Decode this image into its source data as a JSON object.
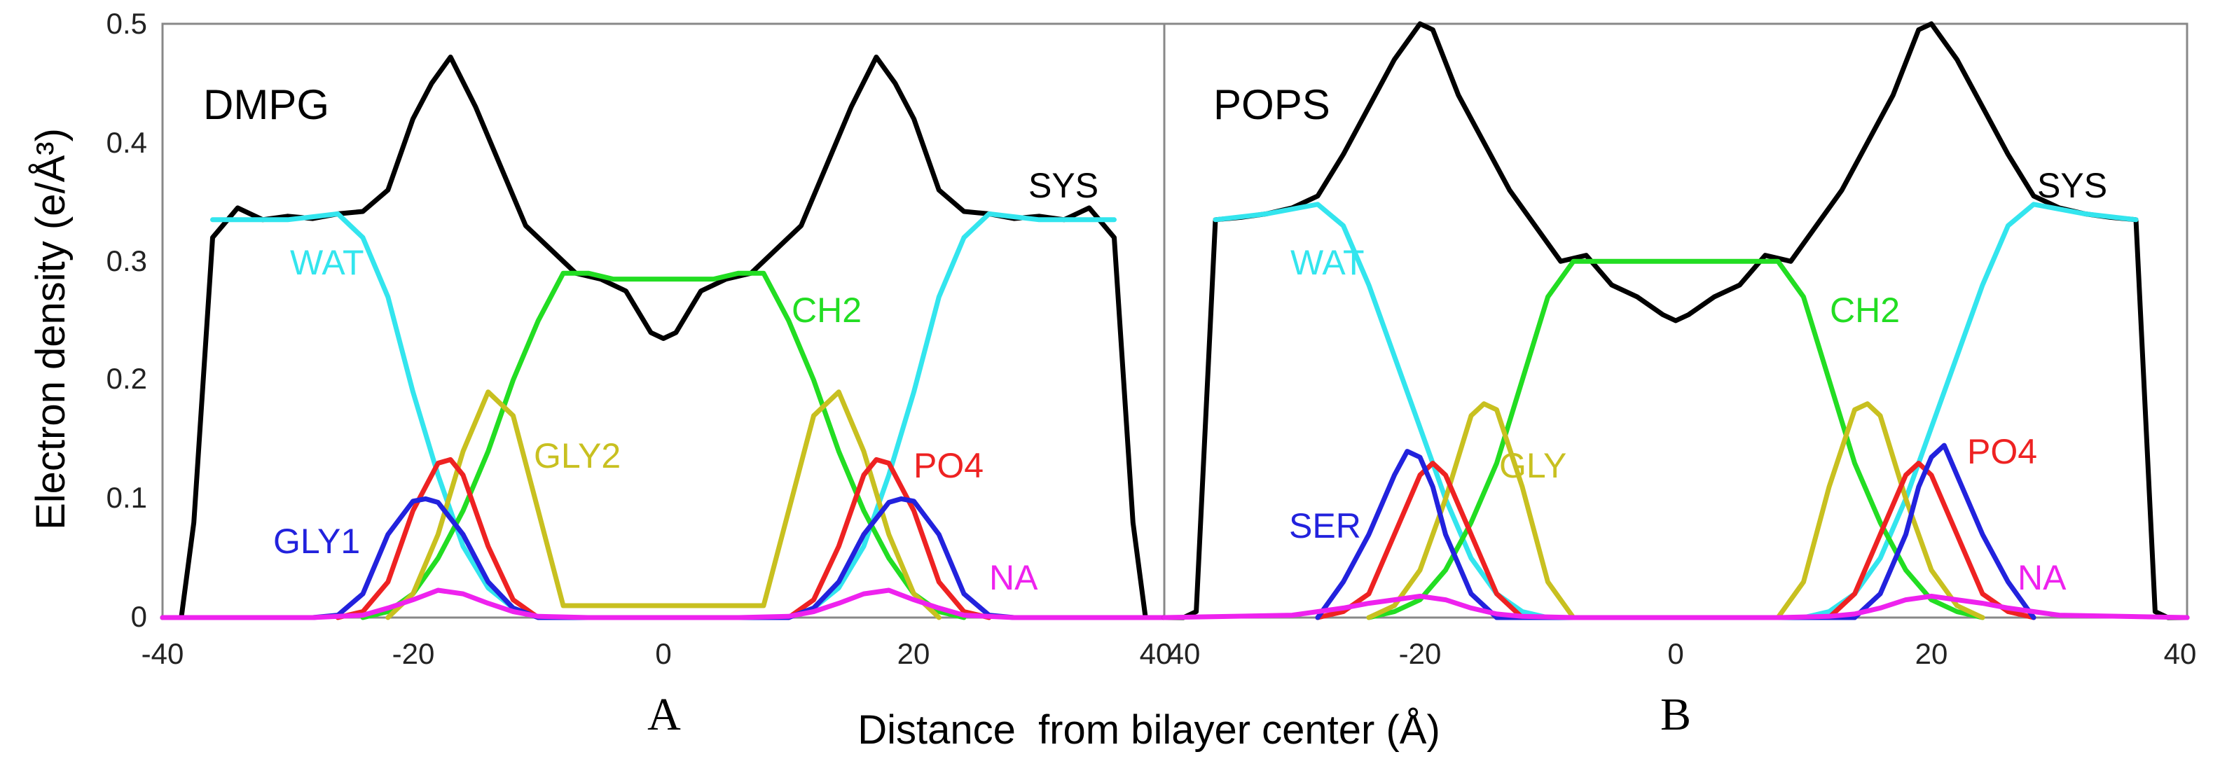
{
  "figure": {
    "ylabel": "Electron density (e/Å³)",
    "xlabel": "Distance  from bilayer center (Å)",
    "yticks": [
      "0",
      "0.1",
      "0.2",
      "0.3",
      "0.4",
      "0.5"
    ],
    "xticks_left": [
      "-40",
      "-20",
      "0",
      "20",
      "40"
    ],
    "xticks_right": [
      "40",
      "-20",
      "0",
      "20",
      "40"
    ]
  },
  "chart_data": [
    {
      "type": "line",
      "panel_letter": "A",
      "title": "DMPG",
      "xlabel": "Distance  from bilayer center (Å)",
      "ylabel": "Electron density (e/Å³)",
      "xlim": [
        -40,
        40
      ],
      "ylim": [
        0,
        0.5
      ],
      "grid": false,
      "series": [
        {
          "name": "SYS",
          "color": "#000000",
          "x": [
            -40,
            -38.5,
            -37.5,
            -36,
            -34,
            -32,
            -30,
            -28,
            -26,
            -24,
            -22,
            -20,
            -18.5,
            -17,
            -15,
            -13,
            -11,
            -9,
            -7,
            -5,
            -3,
            -1,
            0,
            1,
            3,
            5,
            7,
            9,
            11,
            13,
            15,
            17,
            18.5,
            20,
            22,
            24,
            26,
            28,
            30,
            32,
            34,
            36,
            37.5,
            38.5,
            40
          ],
          "y": [
            0,
            0,
            0.08,
            0.32,
            0.345,
            0.335,
            0.338,
            0.336,
            0.34,
            0.342,
            0.36,
            0.42,
            0.45,
            0.472,
            0.43,
            0.38,
            0.33,
            0.31,
            0.29,
            0.285,
            0.275,
            0.24,
            0.235,
            0.24,
            0.275,
            0.285,
            0.29,
            0.31,
            0.33,
            0.38,
            0.43,
            0.472,
            0.45,
            0.42,
            0.36,
            0.342,
            0.34,
            0.336,
            0.338,
            0.335,
            0.345,
            0.32,
            0.08,
            0,
            0
          ]
        },
        {
          "name": "WAT",
          "color": "#33e5ee",
          "x": [
            -36,
            -34,
            -30,
            -26,
            -24,
            -22,
            -20,
            -18,
            -16,
            -14,
            -12,
            -10,
            -8,
            8,
            10,
            12,
            14,
            16,
            18,
            20,
            22,
            24,
            26,
            30,
            34,
            36
          ],
          "y": [
            0.335,
            0.335,
            0.335,
            0.34,
            0.32,
            0.27,
            0.19,
            0.12,
            0.06,
            0.025,
            0.008,
            0,
            0,
            0,
            0,
            0.008,
            0.025,
            0.06,
            0.12,
            0.19,
            0.27,
            0.32,
            0.34,
            0.335,
            0.335,
            0.335
          ]
        },
        {
          "name": "CH2",
          "color": "#22dd22",
          "x": [
            -24,
            -22,
            -20,
            -18,
            -16,
            -14,
            -12,
            -10,
            -8,
            -6,
            -4,
            -2,
            0,
            2,
            4,
            6,
            8,
            10,
            12,
            14,
            16,
            18,
            20,
            22,
            24
          ],
          "y": [
            0,
            0.005,
            0.02,
            0.05,
            0.09,
            0.14,
            0.2,
            0.25,
            0.29,
            0.29,
            0.285,
            0.285,
            0.285,
            0.285,
            0.285,
            0.29,
            0.29,
            0.25,
            0.2,
            0.14,
            0.09,
            0.05,
            0.02,
            0.005,
            0
          ]
        },
        {
          "name": "GLY2",
          "color": "#c8c020",
          "x": [
            -22,
            -20,
            -18,
            -16,
            -14,
            -12,
            -10,
            -8,
            8,
            10,
            12,
            14,
            16,
            18,
            20,
            22
          ],
          "y": [
            0,
            0.02,
            0.07,
            0.14,
            0.19,
            0.17,
            0.09,
            0.01,
            0.01,
            0.09,
            0.17,
            0.19,
            0.14,
            0.07,
            0.02,
            0
          ]
        },
        {
          "name": "PO4",
          "color": "#ee2222",
          "x": [
            -26,
            -24,
            -22,
            -20,
            -18,
            -17,
            -16,
            -14,
            -12,
            -10,
            10,
            12,
            14,
            16,
            17,
            18,
            20,
            22,
            24,
            26
          ],
          "y": [
            0,
            0.005,
            0.03,
            0.09,
            0.13,
            0.133,
            0.12,
            0.06,
            0.015,
            0,
            0,
            0.015,
            0.06,
            0.12,
            0.133,
            0.13,
            0.09,
            0.03,
            0.005,
            0
          ]
        },
        {
          "name": "GLY1",
          "color": "#2222dd",
          "x": [
            -28,
            -26,
            -24,
            -22,
            -20,
            -19,
            -18,
            -16,
            -14,
            -12,
            -10,
            10,
            12,
            14,
            16,
            18,
            19,
            20,
            22,
            24,
            26,
            28
          ],
          "y": [
            0,
            0.002,
            0.02,
            0.07,
            0.098,
            0.1,
            0.097,
            0.07,
            0.03,
            0.008,
            0,
            0,
            0.008,
            0.03,
            0.07,
            0.097,
            0.1,
            0.098,
            0.07,
            0.02,
            0.002,
            0
          ]
        },
        {
          "name": "NA",
          "color": "#ee22ee",
          "x": [
            -40,
            -28,
            -24,
            -22,
            -20,
            -18,
            -16,
            -14,
            -12,
            -10,
            -6,
            6,
            10,
            12,
            14,
            16,
            18,
            20,
            22,
            24,
            28,
            40
          ],
          "y": [
            0,
            0,
            0.002,
            0.008,
            0.015,
            0.023,
            0.02,
            0.012,
            0.005,
            0.001,
            0,
            0,
            0.001,
            0.005,
            0.012,
            0.02,
            0.023,
            0.015,
            0.008,
            0.002,
            0,
            0
          ]
        }
      ],
      "annotations": [
        {
          "text": "DMPG"
        },
        {
          "text": "SYS"
        },
        {
          "text": "WAT"
        },
        {
          "text": "CH2"
        },
        {
          "text": "GLY2"
        },
        {
          "text": "PO4"
        },
        {
          "text": "GLY1"
        },
        {
          "text": "NA"
        }
      ]
    },
    {
      "type": "line",
      "panel_letter": "B",
      "title": "POPS",
      "xlabel": "Distance  from bilayer center (Å)",
      "ylabel": "Electron density (e/Å³)",
      "xlim": [
        -40,
        40
      ],
      "ylim": [
        0,
        0.5
      ],
      "grid": false,
      "series": [
        {
          "name": "SYS",
          "color": "#000000",
          "x": [
            -40,
            -38.5,
            -37.5,
            -36,
            -34,
            -32,
            -30,
            -28,
            -26,
            -24,
            -22,
            -20,
            -19,
            -17,
            -15,
            -13,
            -11,
            -9,
            -7,
            -5,
            -3,
            -1,
            0,
            1,
            3,
            5,
            7,
            9,
            11,
            13,
            15,
            17,
            19,
            20,
            22,
            24,
            26,
            28,
            30,
            32,
            34,
            36,
            37.5,
            38.5,
            40
          ],
          "y": [
            0,
            0,
            0.005,
            0.335,
            0.337,
            0.34,
            0.345,
            0.355,
            0.39,
            0.43,
            0.47,
            0.5,
            0.495,
            0.44,
            0.4,
            0.36,
            0.33,
            0.3,
            0.305,
            0.28,
            0.27,
            0.255,
            0.25,
            0.255,
            0.27,
            0.28,
            0.305,
            0.3,
            0.33,
            0.36,
            0.4,
            0.44,
            0.495,
            0.5,
            0.47,
            0.43,
            0.39,
            0.355,
            0.345,
            0.34,
            0.337,
            0.335,
            0.005,
            0,
            0
          ]
        },
        {
          "name": "WAT",
          "color": "#33e5ee",
          "x": [
            -36,
            -32,
            -28,
            -26,
            -24,
            -22,
            -20,
            -18,
            -16,
            -14,
            -12,
            -10,
            -8,
            8,
            10,
            12,
            14,
            16,
            18,
            20,
            22,
            24,
            26,
            28,
            32,
            36
          ],
          "y": [
            0.335,
            0.34,
            0.348,
            0.33,
            0.28,
            0.22,
            0.16,
            0.1,
            0.05,
            0.02,
            0.005,
            0,
            0,
            0,
            0,
            0.005,
            0.02,
            0.05,
            0.1,
            0.16,
            0.22,
            0.28,
            0.33,
            0.348,
            0.34,
            0.335
          ]
        },
        {
          "name": "CH2",
          "color": "#22dd22",
          "x": [
            -24,
            -22,
            -20,
            -18,
            -16,
            -14,
            -12,
            -10,
            -8,
            -6,
            -4,
            -2,
            0,
            2,
            4,
            6,
            8,
            10,
            12,
            14,
            16,
            18,
            20,
            22,
            24
          ],
          "y": [
            0,
            0.005,
            0.015,
            0.04,
            0.08,
            0.13,
            0.2,
            0.27,
            0.3,
            0.3,
            0.3,
            0.3,
            0.3,
            0.3,
            0.3,
            0.3,
            0.3,
            0.27,
            0.2,
            0.13,
            0.08,
            0.04,
            0.015,
            0.005,
            0
          ]
        },
        {
          "name": "GLY",
          "color": "#c8c020",
          "x": [
            -24,
            -22,
            -20,
            -18,
            -16,
            -15,
            -14,
            -12,
            -10,
            -8,
            8,
            10,
            12,
            14,
            15,
            16,
            18,
            20,
            22,
            24
          ],
          "y": [
            0,
            0.01,
            0.04,
            0.1,
            0.17,
            0.18,
            0.175,
            0.11,
            0.03,
            0,
            0,
            0.03,
            0.11,
            0.175,
            0.18,
            0.17,
            0.1,
            0.04,
            0.01,
            0
          ]
        },
        {
          "name": "PO4",
          "color": "#ee2222",
          "x": [
            -28,
            -26,
            -24,
            -22,
            -20,
            -19,
            -18,
            -16,
            -14,
            -12,
            12,
            14,
            16,
            18,
            19,
            20,
            22,
            24,
            26,
            28
          ],
          "y": [
            0,
            0.005,
            0.02,
            0.07,
            0.12,
            0.13,
            0.12,
            0.07,
            0.02,
            0,
            0,
            0.02,
            0.07,
            0.12,
            0.13,
            0.12,
            0.07,
            0.02,
            0.005,
            0
          ]
        },
        {
          "name": "SER",
          "color": "#2222dd",
          "x": [
            -28,
            -26,
            -24,
            -22,
            -21,
            -20,
            -19,
            -18,
            -16,
            -14,
            14,
            16,
            18,
            19,
            20,
            21,
            22,
            24,
            26,
            28
          ],
          "y": [
            0,
            0.03,
            0.07,
            0.12,
            0.14,
            0.135,
            0.11,
            0.07,
            0.02,
            0,
            0,
            0.02,
            0.07,
            0.11,
            0.135,
            0.145,
            0.12,
            0.07,
            0.03,
            0
          ]
        },
        {
          "name": "NA",
          "color": "#ee22ee",
          "x": [
            -40,
            -30,
            -26,
            -24,
            -22,
            -20,
            -18,
            -16,
            -14,
            -12,
            -8,
            8,
            12,
            14,
            16,
            18,
            20,
            22,
            24,
            26,
            30,
            40
          ],
          "y": [
            0,
            0.002,
            0.008,
            0.012,
            0.015,
            0.018,
            0.015,
            0.008,
            0.003,
            0.001,
            0,
            0,
            0.001,
            0.003,
            0.008,
            0.015,
            0.018,
            0.015,
            0.012,
            0.008,
            0.002,
            0
          ]
        }
      ],
      "annotations": [
        {
          "text": "POPS"
        },
        {
          "text": "SYS"
        },
        {
          "text": "WAT"
        },
        {
          "text": "CH2"
        },
        {
          "text": "GLY"
        },
        {
          "text": "PO4"
        },
        {
          "text": "SER"
        },
        {
          "text": "NA"
        }
      ]
    }
  ]
}
